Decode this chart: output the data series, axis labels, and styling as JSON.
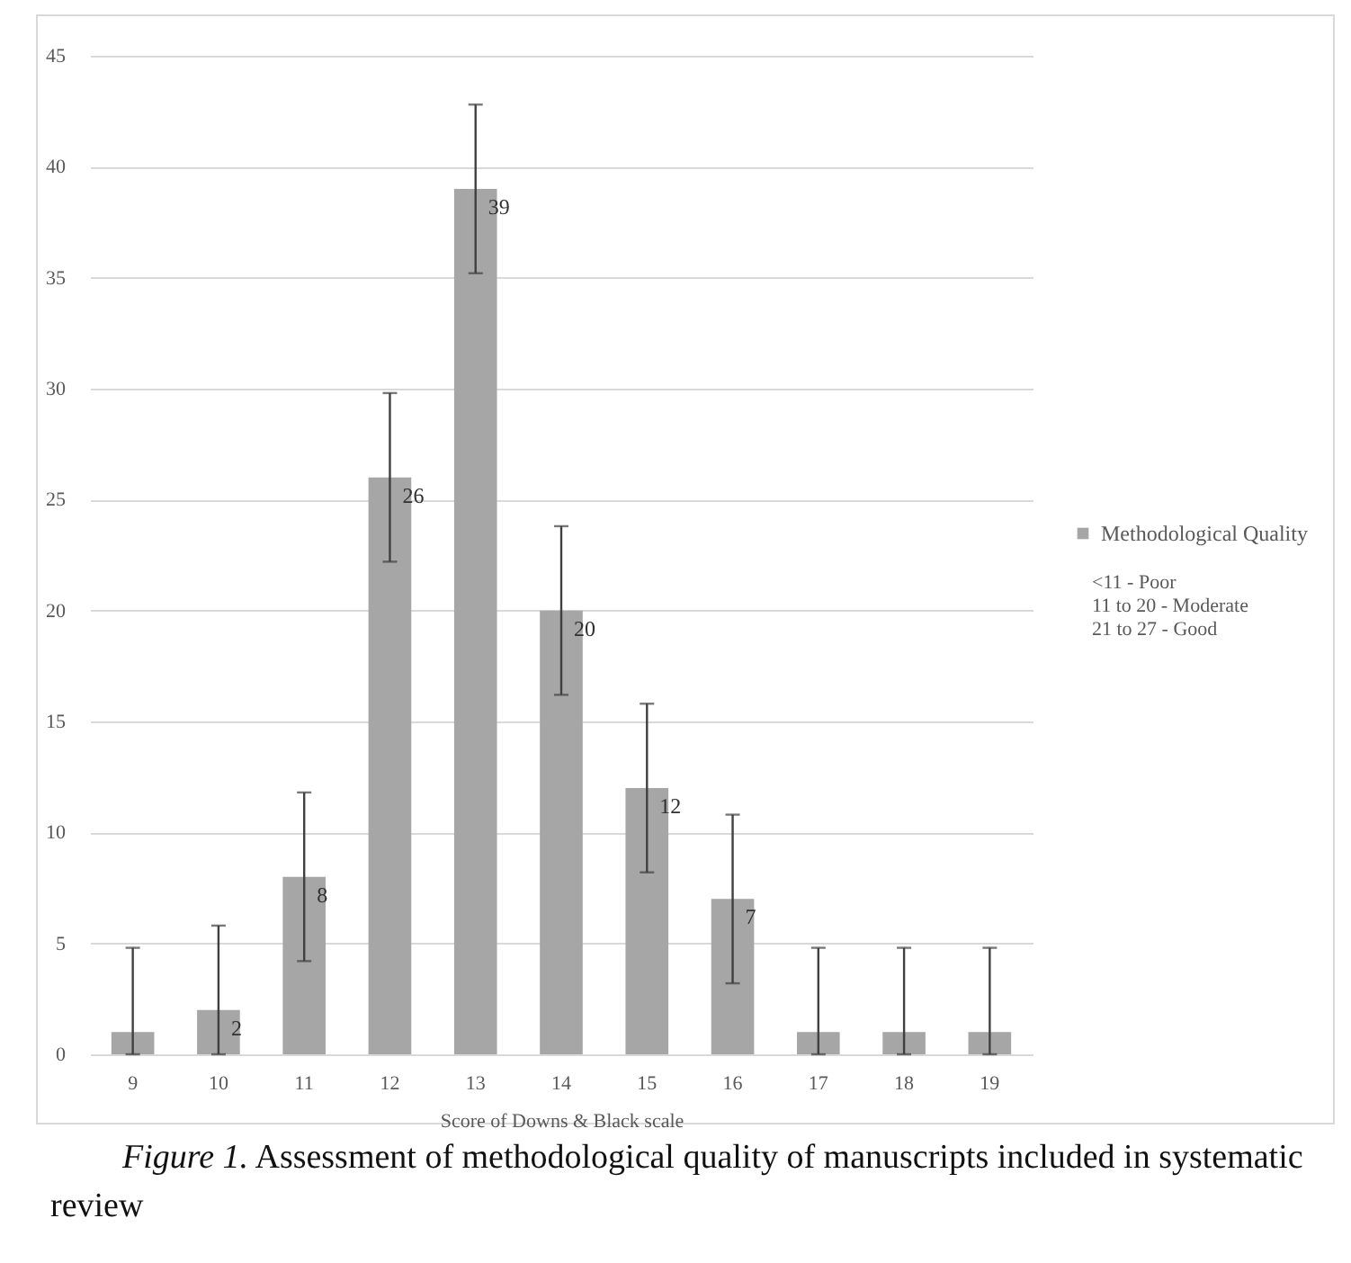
{
  "chart_data": {
    "type": "bar",
    "xlabel": "Score of Downs & Black scale",
    "categories": [
      "9",
      "10",
      "11",
      "12",
      "13",
      "14",
      "15",
      "16",
      "17",
      "18",
      "19"
    ],
    "series": [
      {
        "name": "Methodological Quality",
        "color": "#a6a6a6",
        "values": [
          1,
          2,
          8,
          26,
          39,
          20,
          12,
          7,
          1,
          1,
          1
        ],
        "errors": [
          [
            0,
            4.8
          ],
          [
            0,
            5.8
          ],
          3.8,
          3.8,
          3.8,
          3.8,
          3.8,
          3.8,
          [
            0,
            4.8
          ],
          [
            0,
            4.8
          ],
          [
            0,
            4.8
          ]
        ],
        "value_labels": [
          null,
          "2",
          "8",
          "26",
          "39",
          "20",
          "12",
          "7",
          null,
          null,
          null
        ]
      }
    ],
    "ylim": [
      0,
      45
    ],
    "yticks": [
      0,
      5,
      10,
      15,
      20,
      25,
      30,
      35,
      40,
      45
    ],
    "grid": "y",
    "legend": "right",
    "annotations": [
      "<11 - Poor",
      "11 to 20 - Moderate",
      "21 to 27 - Good",
      "Figure 1. Assessment of methodological quality of manuscripts included in systematic review"
    ]
  }
}
